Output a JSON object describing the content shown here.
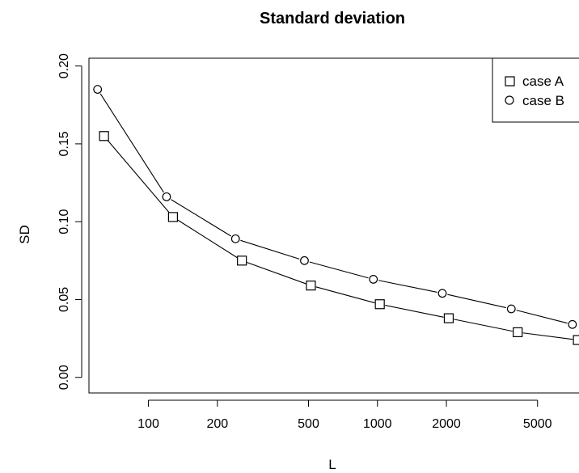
{
  "chart_data": {
    "type": "line",
    "title": "Standard deviation",
    "xlabel": "L",
    "ylabel": "SD",
    "x_scale": "log",
    "xlim": [
      55,
      8500
    ],
    "ylim": [
      -0.01,
      0.205
    ],
    "x_ticks": [
      100,
      200,
      500,
      1000,
      2000,
      5000
    ],
    "x_tick_labels": [
      "100",
      "200",
      "500",
      "1000",
      "2000",
      "5000"
    ],
    "y_ticks": [
      0.0,
      0.05,
      0.1,
      0.15,
      0.2
    ],
    "y_tick_labels": [
      "0.00",
      "0.05",
      "0.10",
      "0.15",
      "0.20"
    ],
    "grid": false,
    "legend_position": "top-right",
    "series": [
      {
        "name": "case A",
        "marker": "square",
        "x": [
          64,
          128,
          256,
          512,
          1024,
          2048,
          4096,
          7500
        ],
        "y": [
          0.155,
          0.103,
          0.075,
          0.059,
          0.047,
          0.038,
          0.029,
          0.024
        ]
      },
      {
        "name": "case B",
        "marker": "circle",
        "x": [
          60,
          120,
          240,
          480,
          960,
          1920,
          3840,
          7100
        ],
        "y": [
          0.185,
          0.116,
          0.089,
          0.075,
          0.063,
          0.054,
          0.044,
          0.034
        ]
      }
    ]
  }
}
